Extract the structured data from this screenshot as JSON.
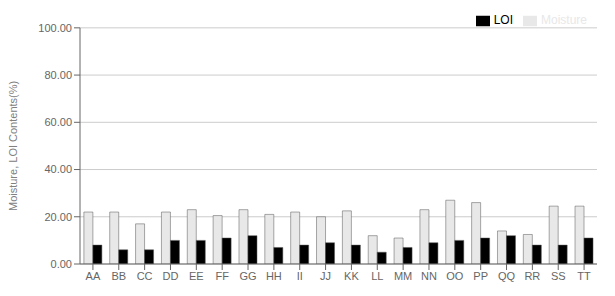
{
  "chart_data": {
    "type": "bar",
    "ylabel": "Moisture, LOI Contents(%)",
    "categories": [
      "AA",
      "BB",
      "CC",
      "DD",
      "EE",
      "FF",
      "GG",
      "HH",
      "II",
      "JJ",
      "KK",
      "LL",
      "MM",
      "NN",
      "OO",
      "PP",
      "QQ",
      "RR",
      "SS",
      "TT"
    ],
    "series": [
      {
        "name": "Moisture",
        "color": "#e8e8e8",
        "values": [
          22,
          22,
          17,
          22,
          23,
          20.5,
          23,
          21,
          22,
          20,
          22.5,
          12,
          11,
          23,
          27,
          26,
          14,
          12.5,
          24.5,
          24.5
        ]
      },
      {
        "name": "LOI",
        "color": "#000000",
        "values": [
          8,
          6,
          6,
          10,
          10,
          11,
          12,
          7,
          8,
          9,
          8,
          5,
          7,
          9,
          10,
          11,
          12,
          8,
          8,
          11
        ]
      }
    ],
    "ylim": [
      0,
      100
    ],
    "yticks": [
      {
        "value": 0,
        "label": "0.00"
      },
      {
        "value": 20,
        "label": "20.00"
      },
      {
        "value": 40,
        "label": "40.00"
      },
      {
        "value": 60,
        "label": "60.00"
      },
      {
        "value": 80,
        "label": "80.00"
      },
      {
        "value": 100,
        "label": "100.00"
      }
    ],
    "grid": true,
    "legend": "upper right"
  }
}
